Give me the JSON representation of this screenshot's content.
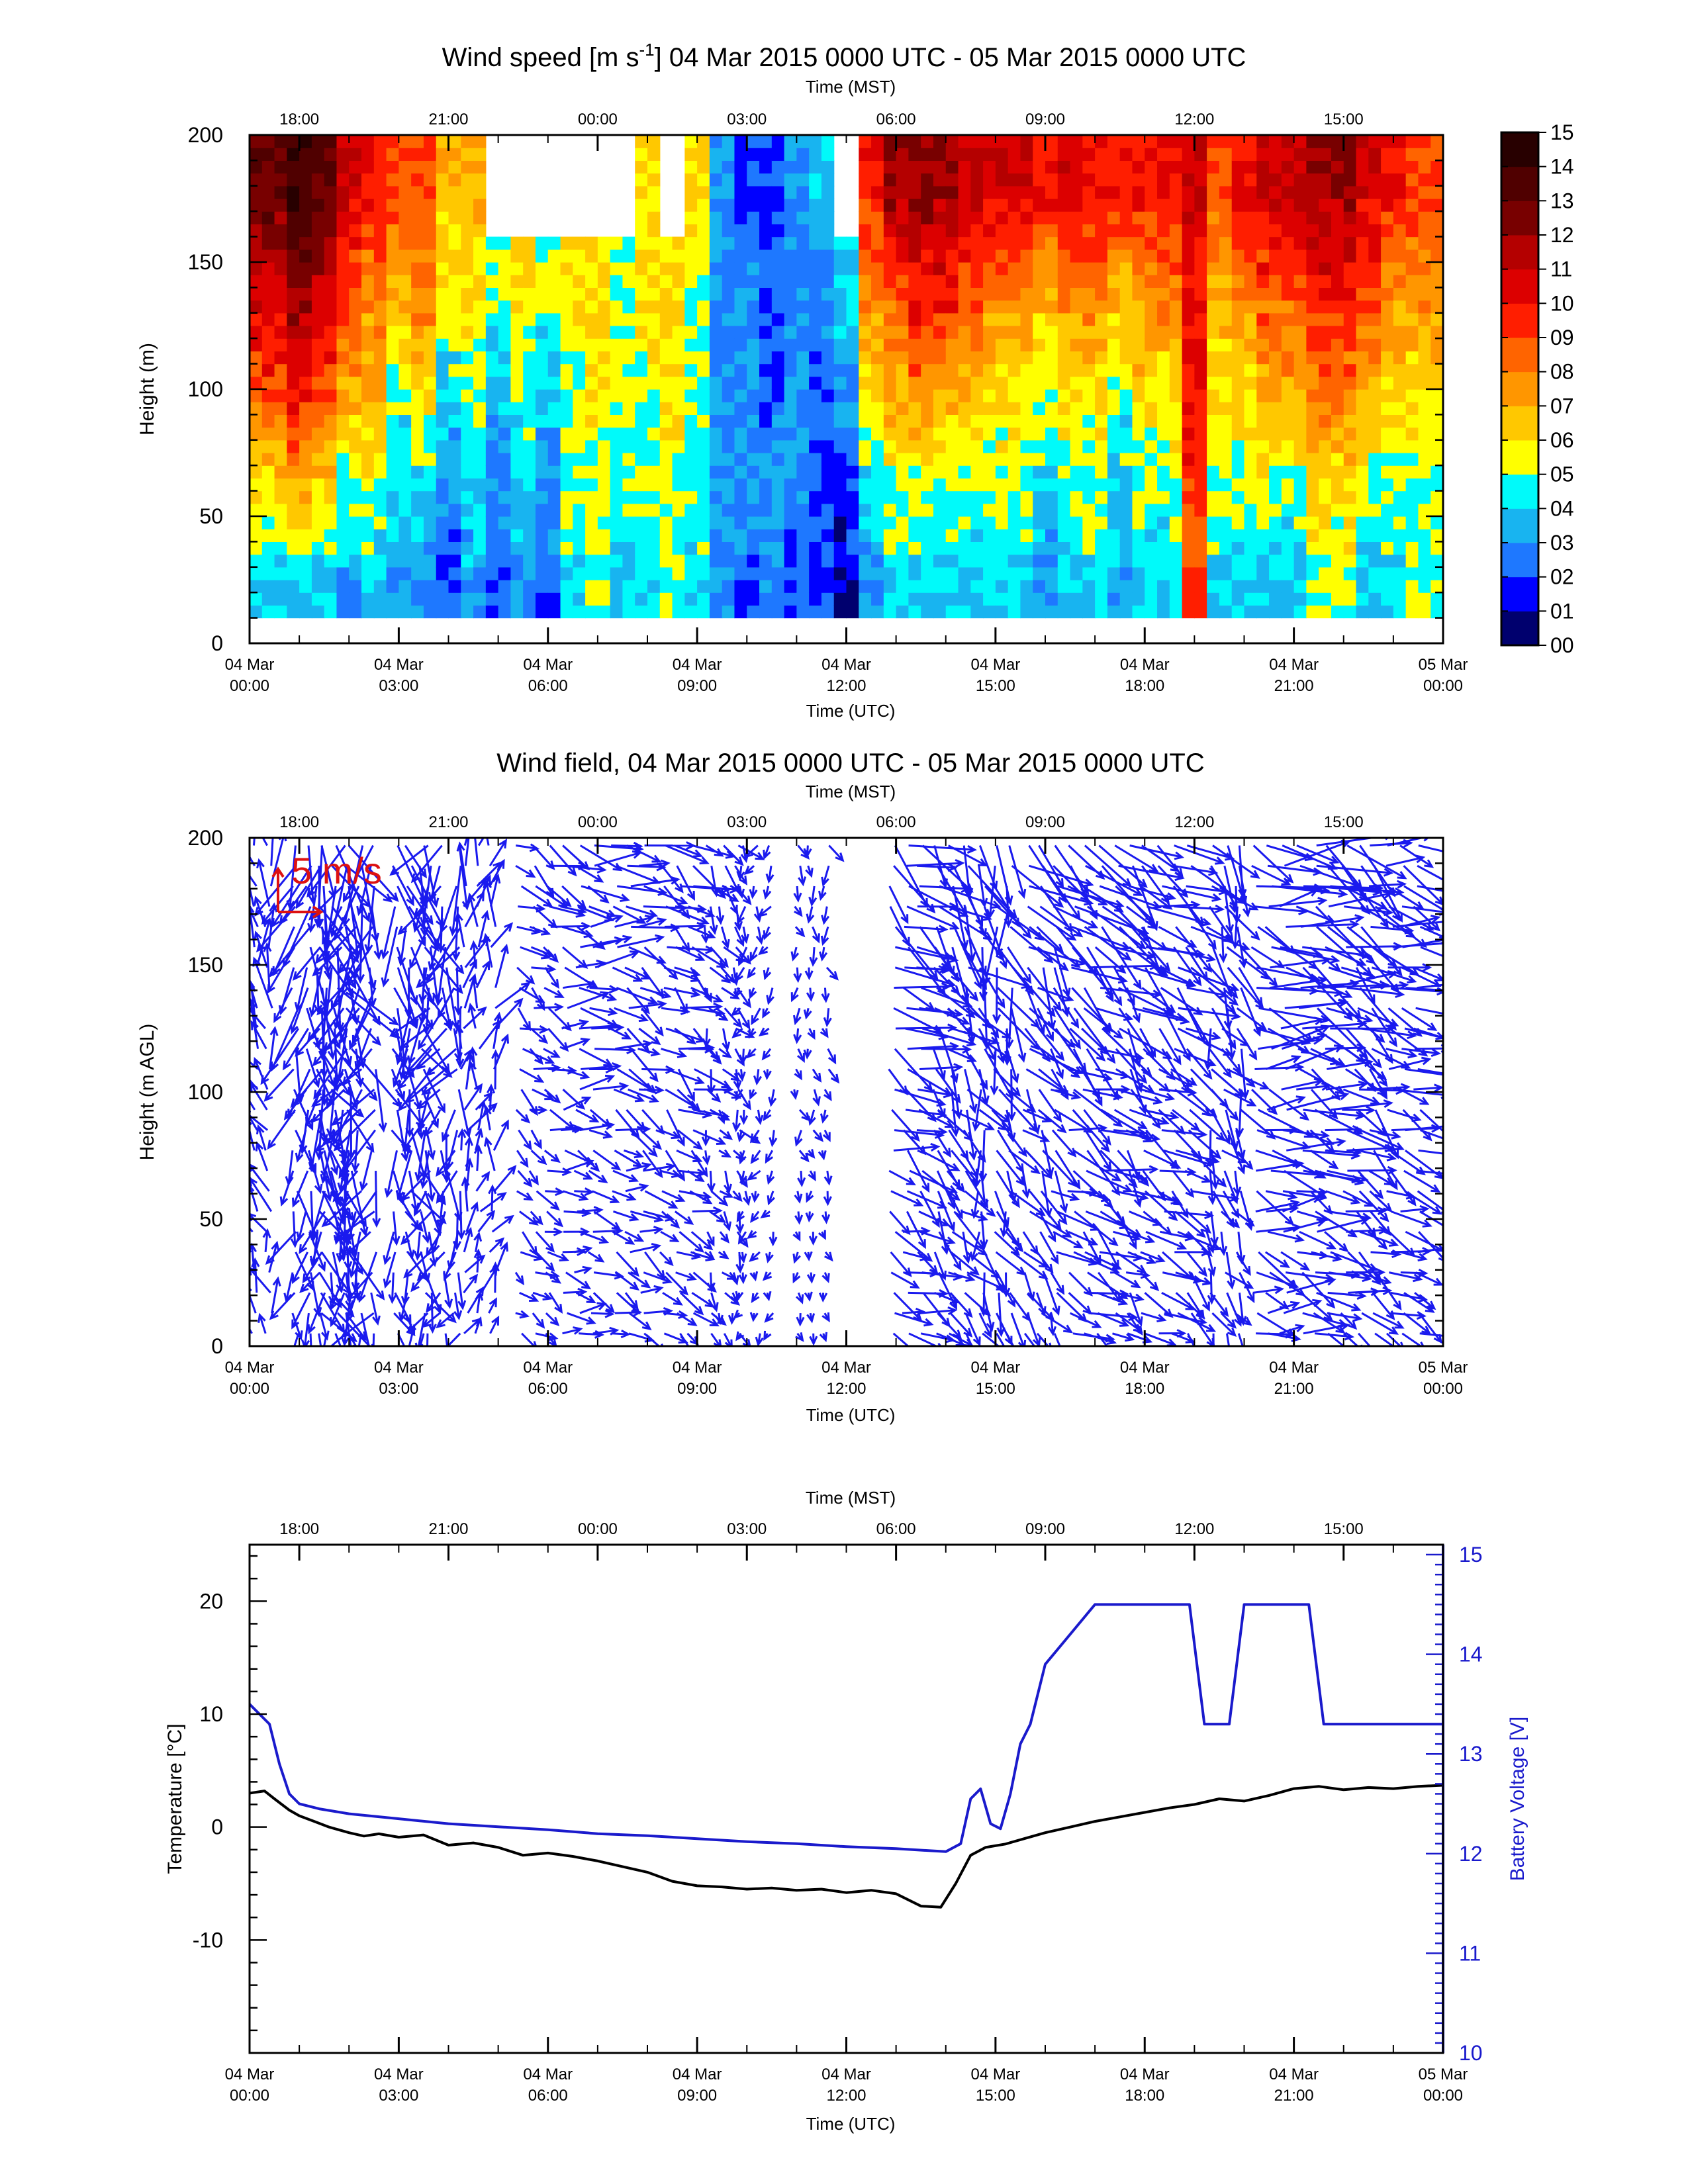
{
  "chart_data": [
    {
      "type": "heatmap",
      "title": "Wind speed [m s-1] 04 Mar 2015 0000 UTC - 05 Mar 2015 0000 UTC",
      "title_parts": {
        "pre": "Wind speed [m s",
        "sup": "-1",
        "post": "] 04 Mar 2015 0000 UTC - 05 Mar 2015 0000 UTC"
      },
      "top_axis_label": "Time (MST)",
      "top_ticks": [
        "18:00",
        "21:00",
        "00:00",
        "03:00",
        "06:00",
        "09:00",
        "12:00",
        "15:00"
      ],
      "xlabel": "Time (UTC)",
      "x_ticks": [
        [
          "04 Mar",
          "00:00"
        ],
        [
          "04 Mar",
          "03:00"
        ],
        [
          "04 Mar",
          "06:00"
        ],
        [
          "04 Mar",
          "09:00"
        ],
        [
          "04 Mar",
          "12:00"
        ],
        [
          "04 Mar",
          "15:00"
        ],
        [
          "04 Mar",
          "18:00"
        ],
        [
          "04 Mar",
          "21:00"
        ],
        [
          "05 Mar",
          "00:00"
        ]
      ],
      "xlim_hours": [
        0,
        24
      ],
      "ylabel": "Height (m)",
      "y_ticks": [
        0,
        50,
        100,
        150,
        200
      ],
      "ylim": [
        0,
        200
      ],
      "colorbar_labels": [
        "00",
        "01",
        "02",
        "03",
        "04",
        "05",
        "06",
        "07",
        "08",
        "09",
        "10",
        "11",
        "12",
        "13",
        "14",
        "15"
      ],
      "colorbar_colors": [
        "#00006e",
        "#0000ff",
        "#1e78ff",
        "#18b4f0",
        "#00fafa",
        "#ffff00",
        "#ffc800",
        "#ff9600",
        "#ff6400",
        "#ff1e00",
        "#dc0000",
        "#b40000",
        "#780000",
        "#500000",
        "#280000"
      ],
      "time_hours": [
        0.5,
        1,
        1.5,
        2,
        2.5,
        3,
        3.5,
        4,
        4.5,
        5,
        5.5,
        6,
        6.5,
        7,
        7.5,
        8,
        8.5,
        9,
        9.5,
        10,
        10.5,
        11,
        11.5,
        12,
        12.5,
        13,
        13.5,
        14,
        14.5,
        15,
        15.5,
        16,
        16.5,
        17,
        17.5,
        18,
        18.5,
        19,
        19.5,
        20,
        20.5,
        21,
        21.5,
        22,
        22.5,
        23,
        23.5
      ],
      "speed_levels_by_time": {
        "heights_m": [
          20,
          60,
          100,
          140,
          180
        ],
        "values_m_s": [
          [
            4,
            6,
            9,
            11,
            13
          ],
          [
            4,
            7,
            10,
            12,
            14
          ],
          [
            4,
            6,
            9,
            11,
            13
          ],
          [
            3,
            5,
            7,
            9,
            11
          ],
          [
            4,
            5,
            7,
            8,
            10
          ],
          [
            3,
            4,
            5,
            7,
            9
          ],
          [
            3,
            4,
            6,
            8,
            9
          ],
          [
            2,
            3,
            4,
            6,
            7
          ],
          [
            3,
            4,
            5,
            6,
            7
          ],
          [
            2,
            3,
            4,
            5,
            null
          ],
          [
            3,
            4,
            5,
            6,
            null
          ],
          [
            2,
            3,
            4,
            5,
            null
          ],
          [
            4,
            5,
            5,
            6,
            null
          ],
          [
            5,
            5,
            6,
            6,
            null
          ],
          [
            4,
            5,
            5,
            5,
            null
          ],
          [
            4,
            5,
            5,
            6,
            6
          ],
          [
            5,
            5,
            6,
            6,
            null
          ],
          [
            4,
            5,
            5,
            5,
            6
          ],
          [
            3,
            3,
            3,
            3,
            3
          ],
          [
            2,
            3,
            3,
            3,
            2
          ],
          [
            3,
            3,
            2,
            2,
            2
          ],
          [
            2,
            3,
            3,
            3,
            3
          ],
          [
            2,
            2,
            2,
            3,
            4
          ],
          [
            1,
            2,
            3,
            4,
            null
          ],
          [
            3,
            4,
            6,
            8,
            10
          ],
          [
            4,
            5,
            7,
            9,
            12
          ],
          [
            4,
            5,
            8,
            10,
            12
          ],
          [
            4,
            5,
            7,
            10,
            12
          ],
          [
            4,
            5,
            7,
            9,
            11
          ],
          [
            4,
            5,
            6,
            8,
            11
          ],
          [
            4,
            5,
            6,
            8,
            11
          ],
          [
            3,
            4,
            5,
            7,
            10
          ],
          [
            4,
            5,
            6,
            8,
            11
          ],
          [
            4,
            5,
            6,
            8,
            10
          ],
          [
            3,
            4,
            5,
            7,
            10
          ],
          [
            4,
            5,
            6,
            8,
            10
          ],
          [
            4,
            5,
            6,
            8,
            10
          ],
          [
            9,
            9,
            10,
            10,
            11
          ],
          [
            4,
            5,
            6,
            7,
            9
          ],
          [
            4,
            5,
            6,
            8,
            10
          ],
          [
            4,
            5,
            7,
            9,
            11
          ],
          [
            4,
            5,
            7,
            9,
            11
          ],
          [
            5,
            6,
            8,
            10,
            12
          ],
          [
            5,
            6,
            8,
            10,
            12
          ],
          [
            4,
            5,
            7,
            9,
            11
          ],
          [
            4,
            5,
            6,
            8,
            10
          ],
          [
            5,
            5,
            6,
            8,
            9
          ]
        ]
      }
    },
    {
      "type": "quiver",
      "title": "Wind field, 04 Mar 2015 0000 UTC - 05 Mar 2015 0000 UTC",
      "top_axis_label": "Time (MST)",
      "top_ticks": [
        "18:00",
        "21:00",
        "00:00",
        "03:00",
        "06:00",
        "09:00",
        "12:00",
        "15:00"
      ],
      "xlabel": "Time (UTC)",
      "x_ticks": [
        [
          "04 Mar",
          "00:00"
        ],
        [
          "04 Mar",
          "03:00"
        ],
        [
          "04 Mar",
          "06:00"
        ],
        [
          "04 Mar",
          "09:00"
        ],
        [
          "04 Mar",
          "12:00"
        ],
        [
          "04 Mar",
          "15:00"
        ],
        [
          "04 Mar",
          "18:00"
        ],
        [
          "04 Mar",
          "21:00"
        ],
        [
          "05 Mar",
          "00:00"
        ]
      ],
      "xlim_hours": [
        0,
        24
      ],
      "ylabel": "Height (m AGL)",
      "y_ticks": [
        0,
        50,
        100,
        150,
        200
      ],
      "ylim": [
        0,
        200
      ],
      "reference_vector_label": "5 m/s",
      "reference_vector_speed_m_s": 5,
      "arrow_color": "#1a1aee",
      "reference_color": "#dd1111",
      "columns": [
        {
          "t": 0.1,
          "dir": 160,
          "spd": 6
        },
        {
          "t": 1.2,
          "dir": 10,
          "spd": 8
        },
        {
          "t": 1.7,
          "dir": 340,
          "spd": 9
        },
        {
          "t": 2.2,
          "dir": 20,
          "spd": 8
        },
        {
          "t": 3.2,
          "dir": 345,
          "spd": 7
        },
        {
          "t": 3.9,
          "dir": 20,
          "spd": 7
        },
        {
          "t": 4.6,
          "dir": 200,
          "spd": 5
        },
        {
          "t": 5.7,
          "dir": 300,
          "spd": 4
        },
        {
          "t": 6.6,
          "dir": 280,
          "spd": 5
        },
        {
          "t": 7.6,
          "dir": 290,
          "spd": 5
        },
        {
          "t": 8.6,
          "dir": 300,
          "spd": 5
        },
        {
          "t": 9.5,
          "dir": 330,
          "spd": 3
        },
        {
          "t": 10.2,
          "dir": 20,
          "spd": 2
        },
        {
          "t": 11.3,
          "dir": 350,
          "spd": 2
        },
        {
          "t": 13.2,
          "dir": 300,
          "spd": 7
        },
        {
          "t": 14.1,
          "dir": 320,
          "spd": 7
        },
        {
          "t": 15.0,
          "dir": 340,
          "spd": 7
        },
        {
          "t": 15.9,
          "dir": 320,
          "spd": 7
        },
        {
          "t": 16.8,
          "dir": 300,
          "spd": 8
        },
        {
          "t": 17.7,
          "dir": 310,
          "spd": 7
        },
        {
          "t": 18.6,
          "dir": 300,
          "spd": 7
        },
        {
          "t": 19.6,
          "dir": 330,
          "spd": 6
        },
        {
          "t": 20.5,
          "dir": 280,
          "spd": 8
        },
        {
          "t": 21.4,
          "dir": 290,
          "spd": 8
        },
        {
          "t": 22.3,
          "dir": 300,
          "spd": 7
        },
        {
          "t": 23.2,
          "dir": 290,
          "spd": 7
        }
      ]
    },
    {
      "type": "line",
      "top_axis_label": "Time (MST)",
      "top_ticks": [
        "18:00",
        "21:00",
        "00:00",
        "03:00",
        "06:00",
        "09:00",
        "12:00",
        "15:00"
      ],
      "xlabel": "Time (UTC)",
      "x_ticks": [
        [
          "04 Mar",
          "00:00"
        ],
        [
          "04 Mar",
          "03:00"
        ],
        [
          "04 Mar",
          "06:00"
        ],
        [
          "04 Mar",
          "09:00"
        ],
        [
          "04 Mar",
          "12:00"
        ],
        [
          "04 Mar",
          "15:00"
        ],
        [
          "04 Mar",
          "18:00"
        ],
        [
          "04 Mar",
          "21:00"
        ],
        [
          "05 Mar",
          "00:00"
        ]
      ],
      "xlim_hours": [
        0,
        24
      ],
      "ylabel": "Temperature [°C]",
      "y_ticks": [
        -10,
        0,
        10,
        20
      ],
      "ylim": [
        -20,
        25
      ],
      "ylabel_right": "Battery Voltage [V]",
      "y_ticks_right": [
        10,
        11,
        12,
        13,
        14,
        15
      ],
      "ylim_right": [
        10,
        15.1
      ],
      "series": [
        {
          "axis": "left",
          "color": "#000000",
          "x": [
            0,
            0.3,
            0.5,
            0.8,
            1.0,
            1.3,
            1.6,
            2.0,
            2.3,
            2.6,
            3.0,
            3.5,
            4.0,
            4.5,
            5.0,
            5.5,
            6.0,
            6.5,
            7.0,
            7.5,
            8.0,
            8.5,
            9.0,
            9.5,
            10.0,
            10.5,
            11.0,
            11.5,
            12.0,
            12.5,
            13.0,
            13.5,
            13.9,
            14.2,
            14.5,
            14.8,
            15.2,
            15.6,
            16.0,
            16.5,
            17.0,
            17.5,
            18.0,
            18.5,
            19.0,
            19.5,
            20.0,
            20.5,
            21.0,
            21.5,
            22.0,
            22.5,
            23.0,
            23.5,
            24.0
          ],
          "y": [
            3.0,
            3.2,
            2.5,
            1.5,
            1.0,
            0.5,
            0.0,
            -0.5,
            -0.8,
            -0.6,
            -0.9,
            -0.7,
            -1.6,
            -1.4,
            -1.8,
            -2.5,
            -2.3,
            -2.6,
            -3.0,
            -3.5,
            -4.0,
            -4.8,
            -5.2,
            -5.3,
            -5.5,
            -5.4,
            -5.6,
            -5.5,
            -5.8,
            -5.6,
            -5.9,
            -7.0,
            -7.1,
            -5.0,
            -2.5,
            -1.8,
            -1.5,
            -1.0,
            -0.5,
            0.0,
            0.5,
            0.9,
            1.3,
            1.7,
            2.0,
            2.5,
            2.3,
            2.8,
            3.4,
            3.6,
            3.3,
            3.5,
            3.4,
            3.6,
            3.7
          ]
        },
        {
          "axis": "right",
          "color": "#1a1acc",
          "x": [
            0,
            0.4,
            0.6,
            0.8,
            1.0,
            1.4,
            2.0,
            3.0,
            4.0,
            5.0,
            6.0,
            7.0,
            8.0,
            9.0,
            10.0,
            11.0,
            12.0,
            13.0,
            14.0,
            14.3,
            14.5,
            14.7,
            14.9,
            15.1,
            15.3,
            15.5,
            15.7,
            16.0,
            16.5,
            17.0,
            18.0,
            18.9,
            19.2,
            19.5,
            19.7,
            20.0,
            20.5,
            21.0,
            21.3,
            21.6,
            22.0,
            23.0,
            24.0
          ],
          "y": [
            13.5,
            13.3,
            12.9,
            12.6,
            12.5,
            12.45,
            12.4,
            12.35,
            12.3,
            12.27,
            12.24,
            12.2,
            12.18,
            12.15,
            12.12,
            12.1,
            12.07,
            12.05,
            12.02,
            12.1,
            12.55,
            12.65,
            12.3,
            12.25,
            12.6,
            13.1,
            13.3,
            13.9,
            14.2,
            14.5,
            14.5,
            14.5,
            13.3,
            13.3,
            13.3,
            14.5,
            14.5,
            14.5,
            14.5,
            13.3,
            13.3,
            13.3,
            13.3
          ]
        }
      ]
    }
  ]
}
